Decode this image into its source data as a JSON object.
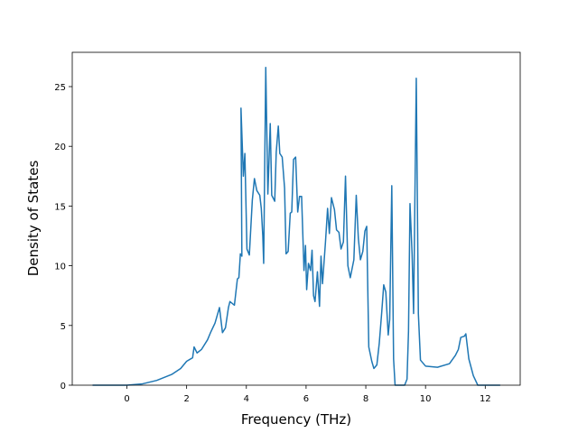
{
  "chart_data": {
    "type": "line",
    "x_label": "Frequency (THz)",
    "y_label": "Density of States",
    "x": [
      -1.15,
      0,
      0.5,
      1,
      1.5,
      1.8,
      2.0,
      2.2,
      2.25,
      2.35,
      2.5,
      2.7,
      2.8,
      2.95,
      3.1,
      3.2,
      3.3,
      3.4,
      3.45,
      3.6,
      3.7,
      3.75,
      3.8,
      3.85,
      3.82,
      3.9,
      3.95,
      4.02,
      4.1,
      4.2,
      4.27,
      4.35,
      4.45,
      4.5,
      4.55,
      4.58,
      4.65,
      4.72,
      4.8,
      4.85,
      4.95,
      5.0,
      5.07,
      5.12,
      5.2,
      5.28,
      5.33,
      5.4,
      5.47,
      5.52,
      5.58,
      5.65,
      5.72,
      5.78,
      5.85,
      5.93,
      5.98,
      6.02,
      6.08,
      6.15,
      6.2,
      6.25,
      6.3,
      6.38,
      6.45,
      6.5,
      6.55,
      6.65,
      6.72,
      6.78,
      6.85,
      6.95,
      7.02,
      7.1,
      7.17,
      7.25,
      7.32,
      7.4,
      7.48,
      7.6,
      7.68,
      7.75,
      7.82,
      7.9,
      7.97,
      8.03,
      8.1,
      8.2,
      8.27,
      8.37,
      8.45,
      8.53,
      8.6,
      8.67,
      8.75,
      8.8,
      8.87,
      8.93,
      8.98,
      9.3,
      9.38,
      9.43,
      9.48,
      9.55,
      9.6,
      9.69,
      9.76,
      9.83,
      10.0,
      10.4,
      10.8,
      11.0,
      11.1,
      11.18,
      11.3,
      11.35,
      11.45,
      11.6,
      11.75,
      12.0,
      12.5
    ],
    "series": [
      {
        "color": "#1f77b4",
        "values": [
          0,
          0,
          0.1,
          0.4,
          0.9,
          1.4,
          2.0,
          2.3,
          3.2,
          2.7,
          3.0,
          3.8,
          4.4,
          5.2,
          6.5,
          4.4,
          4.8,
          6.5,
          7.0,
          6.7,
          8.9,
          9.0,
          11.0,
          10.8,
          23.2,
          17.5,
          19.4,
          11.4,
          10.9,
          15.5,
          17.3,
          16.3,
          15.9,
          14.8,
          12.5,
          10.2,
          26.6,
          16.0,
          21.9,
          15.9,
          15.4,
          19.5,
          21.7,
          19.4,
          19.1,
          16.5,
          11.0,
          11.2,
          14.4,
          14.5,
          18.9,
          19.1,
          14.5,
          15.8,
          15.8,
          9.6,
          11.7,
          8.0,
          10.2,
          9.6,
          11.3,
          7.5,
          7.0,
          9.5,
          6.6,
          10.8,
          8.5,
          12.0,
          14.8,
          12.7,
          15.7,
          14.7,
          13.0,
          12.8,
          11.4,
          12.0,
          17.5,
          10.0,
          9.0,
          10.5,
          15.9,
          12.3,
          10.5,
          11.2,
          12.9,
          13.3,
          3.2,
          2.0,
          1.4,
          1.7,
          3.5,
          6.0,
          8.4,
          7.8,
          4.2,
          5.5,
          16.7,
          2.2,
          0,
          0,
          0.5,
          4.5,
          15.2,
          11.0,
          6.0,
          25.7,
          6.0,
          2.1,
          1.6,
          1.5,
          1.8,
          2.5,
          3.0,
          4.0,
          4.1,
          4.3,
          2.2,
          0.8,
          0,
          0,
          0
        ]
      }
    ],
    "xlim": [
      -1.83,
      13.17
    ],
    "ylim": [
      0,
      27.87
    ],
    "xticks": [
      0,
      2,
      4,
      6,
      8,
      10,
      12
    ],
    "yticks": [
      0,
      5,
      10,
      15,
      20,
      25
    ]
  }
}
